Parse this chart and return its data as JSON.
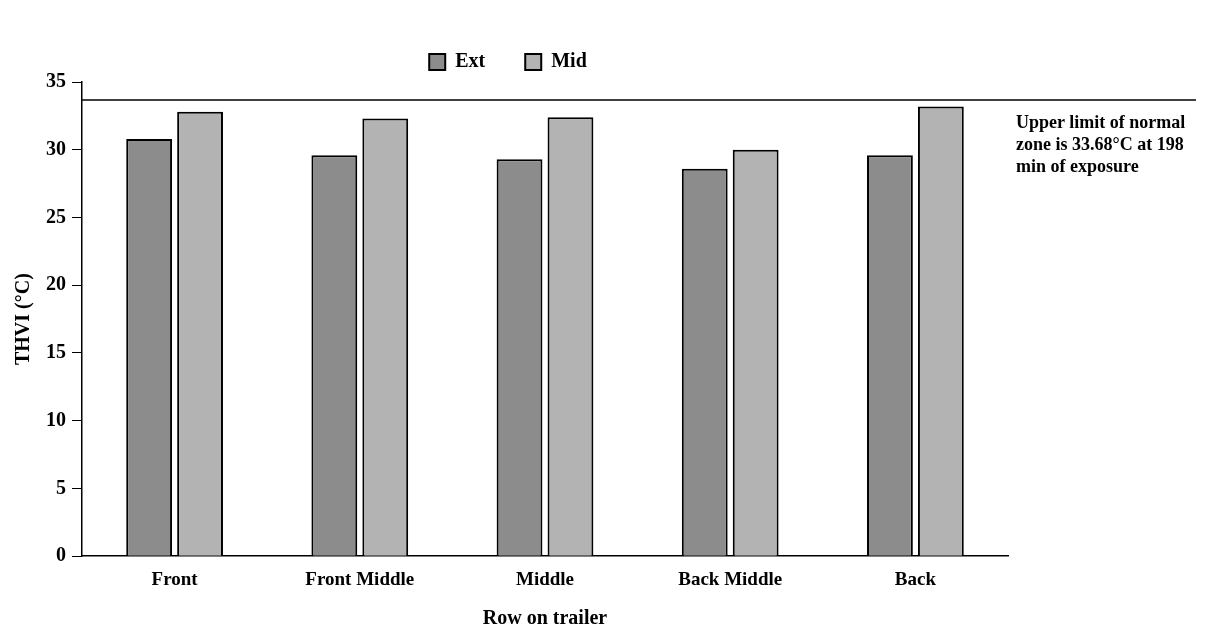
{
  "chart_data": {
    "type": "bar",
    "xlabel": "Row on trailer",
    "ylabel": "THVI (°C)",
    "categories": [
      "Front",
      "Front Middle",
      "Middle",
      "Back Middle",
      "Back"
    ],
    "series": [
      {
        "name": "Ext",
        "color": "#8c8c8c",
        "values": [
          30.8,
          29.6,
          29.3,
          28.6,
          29.6
        ]
      },
      {
        "name": "Mid",
        "color": "#b3b3b3",
        "values": [
          32.8,
          32.3,
          32.4,
          30.0,
          33.2
        ]
      }
    ],
    "ylim": [
      0,
      35
    ],
    "yticks": [
      0,
      5,
      10,
      15,
      20,
      25,
      30,
      35
    ],
    "ref_lines": [
      {
        "axis": "y",
        "value": 33.68,
        "label": "Upper limit of normal zone is 33.68°C at 198 min of exposure",
        "color": "#000000"
      }
    ],
    "grid": false,
    "legend": "top"
  }
}
